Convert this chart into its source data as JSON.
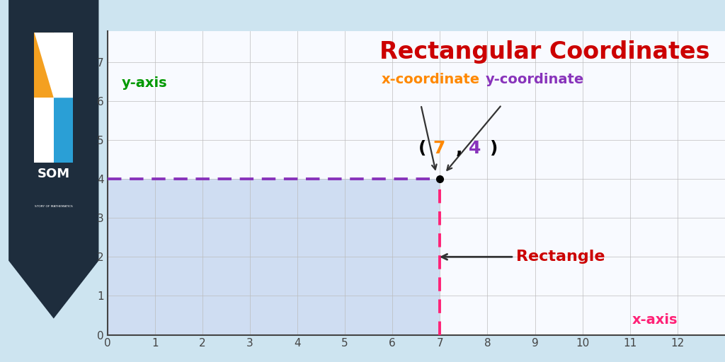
{
  "title": "Rectangular Coordinates",
  "title_color": "#cc0000",
  "title_fontsize": 24,
  "outer_bg": "#cde4f0",
  "plot_bg": "#f8faff",
  "grid_color": "#bbbbbb",
  "xlim": [
    0,
    13
  ],
  "ylim": [
    0,
    7.8
  ],
  "xticks": [
    0,
    1,
    2,
    3,
    4,
    5,
    6,
    7,
    8,
    9,
    10,
    11,
    12
  ],
  "yticks": [
    0,
    1,
    2,
    3,
    4,
    5,
    6,
    7
  ],
  "point_x": 7,
  "point_y": 4,
  "rect_fill": "#c8d8f0",
  "dashed_horiz_color": "#8833bb",
  "dashed_vert_color": "#ff2277",
  "xaxis_label": "x-axis",
  "xaxis_label_color": "#ff2277",
  "yaxis_label": "y-axis",
  "yaxis_label_color": "#009900",
  "x_coord_label": "x-coordinate",
  "x_coord_color": "#ff8800",
  "y_coord_label": "y-coordinate",
  "y_coord_color": "#8833bb",
  "rect_label": "Rectangle",
  "rect_label_color": "#cc0000",
  "stripe_color": "#5ab8d8",
  "left_panel_color": "#1e2d3d",
  "logo_text_color": "#ffffff",
  "logo_orange": "#f4a020",
  "logo_blue": "#2a9fd6",
  "logo_white": "#ffffff"
}
